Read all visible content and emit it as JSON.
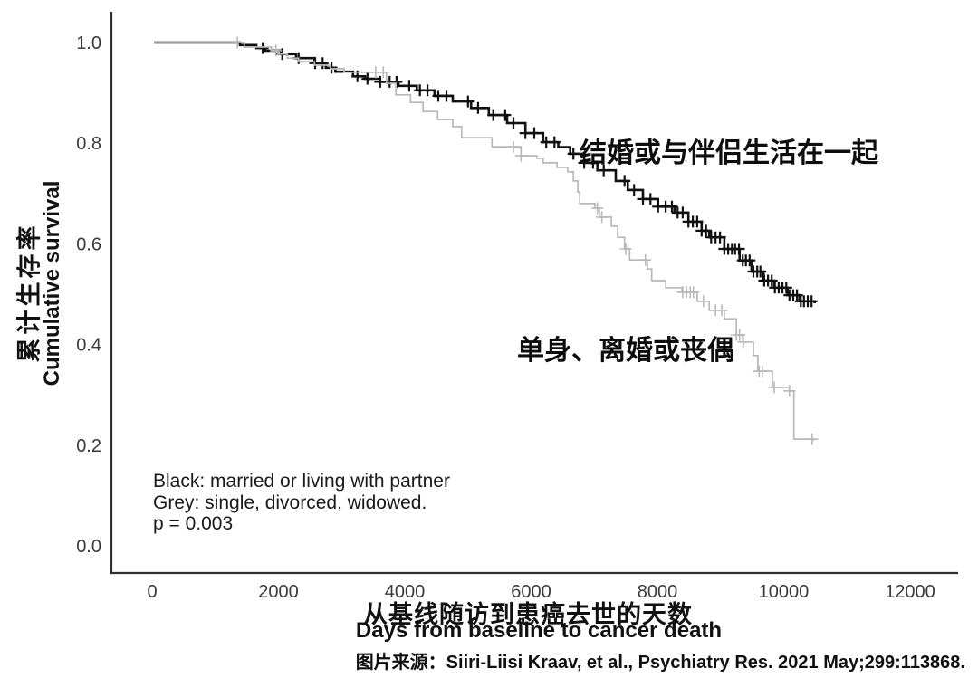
{
  "chart_data": {
    "type": "line",
    "subtype": "kaplan-meier-step",
    "xlabel_zh": "从基线随访到患癌去世的天数",
    "xlabel_en": "Days from baseline to cancer death",
    "ylabel_zh": "累计生存率",
    "ylabel_en": "Cumulative survival",
    "x_ticks": [
      0,
      2000,
      4000,
      6000,
      8000,
      10000,
      12000
    ],
    "x_tick_labels": [
      "0",
      "2000",
      "4000",
      "6000",
      "8000",
      "10000",
      "12000"
    ],
    "y_ticks": [
      0.0,
      0.2,
      0.4,
      0.6,
      0.8,
      1.0
    ],
    "y_tick_labels": [
      "0.0",
      "0.2",
      "0.4",
      "0.6",
      "0.8",
      "1.0"
    ],
    "xlim": [
      -650,
      12800
    ],
    "ylim": [
      0.0,
      1.0
    ],
    "grid": false,
    "p_value": "0.003",
    "series": [
      {
        "id": "married",
        "name": "married or living with partner",
        "name_zh": "结婚或与伴侣生活在一起",
        "color": "#111111",
        "points": [
          [
            30,
            1.0
          ],
          [
            1250,
            1.0
          ],
          [
            1390,
            0.995
          ],
          [
            1650,
            0.989
          ],
          [
            1790,
            0.984
          ],
          [
            2040,
            0.977
          ],
          [
            2280,
            0.969
          ],
          [
            2570,
            0.959
          ],
          [
            2750,
            0.95
          ],
          [
            2900,
            0.942
          ],
          [
            3180,
            0.933
          ],
          [
            3370,
            0.928
          ],
          [
            3610,
            0.922
          ],
          [
            3900,
            0.914
          ],
          [
            4190,
            0.905
          ],
          [
            4470,
            0.894
          ],
          [
            4760,
            0.883
          ],
          [
            5050,
            0.87
          ],
          [
            5330,
            0.856
          ],
          [
            5620,
            0.84
          ],
          [
            5910,
            0.82
          ],
          [
            6190,
            0.802
          ],
          [
            6430,
            0.792
          ],
          [
            6620,
            0.779
          ],
          [
            6840,
            0.761
          ],
          [
            7050,
            0.746
          ],
          [
            7340,
            0.725
          ],
          [
            7530,
            0.707
          ],
          [
            7770,
            0.689
          ],
          [
            8010,
            0.674
          ],
          [
            8270,
            0.662
          ],
          [
            8490,
            0.644
          ],
          [
            8700,
            0.626
          ],
          [
            8820,
            0.613
          ],
          [
            9060,
            0.59
          ],
          [
            9300,
            0.567
          ],
          [
            9490,
            0.545
          ],
          [
            9680,
            0.527
          ],
          [
            9850,
            0.513
          ],
          [
            10060,
            0.498
          ],
          [
            10250,
            0.486
          ],
          [
            10490,
            0.482
          ]
        ],
        "censor_days": [
          1750,
          2060,
          2320,
          2580,
          2700,
          2840,
          3250,
          3410,
          3610,
          3760,
          3870,
          4070,
          4240,
          4360,
          4530,
          4660,
          5000,
          5160,
          5400,
          5590,
          5720,
          5910,
          6050,
          6240,
          6370,
          6670,
          6840,
          6980,
          7150,
          7480,
          7630,
          7770,
          7890,
          8010,
          8130,
          8230,
          8320,
          8400,
          8490,
          8560,
          8630,
          8700,
          8770,
          8850,
          8920,
          8990,
          9060,
          9120,
          9180,
          9230,
          9290,
          9350,
          9400,
          9460,
          9520,
          9580,
          9630,
          9690,
          9750,
          9810,
          9860,
          9920,
          9980,
          10040,
          10090,
          10150,
          10210,
          10270,
          10320,
          10380,
          10440
        ]
      },
      {
        "id": "single",
        "name": "single, divorced, widowed",
        "name_zh": "单身、离婚或丧偶",
        "color": "#b8b8b8",
        "points": [
          [
            30,
            1.0
          ],
          [
            1290,
            1.0
          ],
          [
            1460,
            0.991
          ],
          [
            1890,
            0.984
          ],
          [
            1990,
            0.977
          ],
          [
            2140,
            0.969
          ],
          [
            2320,
            0.962
          ],
          [
            2570,
            0.955
          ],
          [
            2820,
            0.948
          ],
          [
            3040,
            0.941
          ],
          [
            3710,
            0.919
          ],
          [
            3860,
            0.896
          ],
          [
            4090,
            0.881
          ],
          [
            4290,
            0.863
          ],
          [
            4520,
            0.847
          ],
          [
            4760,
            0.833
          ],
          [
            4900,
            0.811
          ],
          [
            5380,
            0.793
          ],
          [
            5840,
            0.775
          ],
          [
            6090,
            0.77
          ],
          [
            6190,
            0.761
          ],
          [
            6410,
            0.752
          ],
          [
            6580,
            0.743
          ],
          [
            6670,
            0.725
          ],
          [
            6740,
            0.703
          ],
          [
            6770,
            0.68
          ],
          [
            7010,
            0.671
          ],
          [
            7080,
            0.653
          ],
          [
            7270,
            0.635
          ],
          [
            7370,
            0.613
          ],
          [
            7480,
            0.59
          ],
          [
            7560,
            0.568
          ],
          [
            7840,
            0.55
          ],
          [
            7910,
            0.527
          ],
          [
            8130,
            0.513
          ],
          [
            8390,
            0.504
          ],
          [
            8630,
            0.486
          ],
          [
            8820,
            0.468
          ],
          [
            9060,
            0.451
          ],
          [
            9250,
            0.419
          ],
          [
            9350,
            0.405
          ],
          [
            9520,
            0.378
          ],
          [
            9590,
            0.347
          ],
          [
            9820,
            0.315
          ],
          [
            10090,
            0.308
          ],
          [
            10160,
            0.212
          ],
          [
            10470,
            0.209
          ]
        ],
        "censor_days": [
          1350,
          1960,
          3540,
          3660,
          5720,
          5840,
          7050,
          7120,
          7500,
          7810,
          8400,
          8460,
          8520,
          8570,
          8730,
          8920,
          9020,
          9250,
          9300,
          9360,
          9610,
          9660,
          9850,
          10090,
          10450
        ]
      }
    ],
    "annotations": [
      {
        "text": "结婚或与伴侣生活在一起"
      },
      {
        "text": "单身、离婚或丧偶"
      }
    ]
  },
  "legend": {
    "lines": [
      "Black: married or living with partner",
      "Grey: single, divorced, widowed.",
      "p = 0.003"
    ]
  },
  "source": {
    "text": "图片来源：Siiri-Liisi Kraav, et al., Psychiatry Res. 2021 May;299:113868."
  }
}
